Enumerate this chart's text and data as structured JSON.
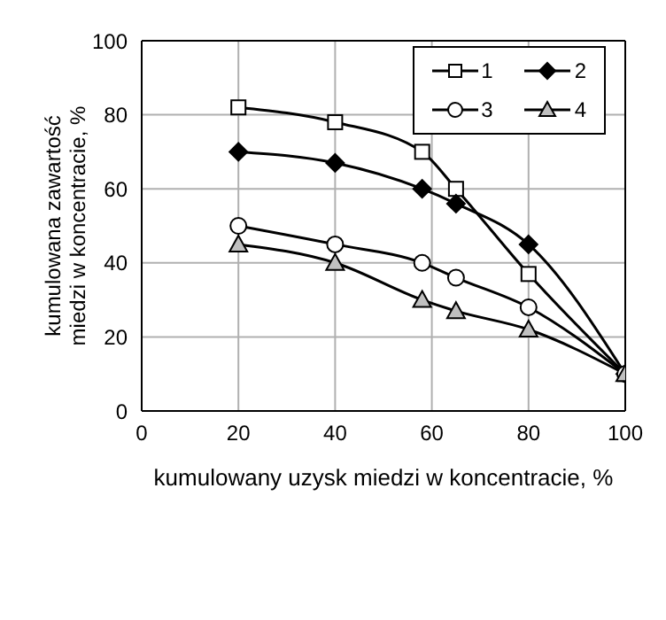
{
  "chart_data": {
    "type": "line",
    "xlabel": "kumulowany uzysk miedzi w koncentracie, %",
    "ylabel": "kumulowana zawartość miedzi w koncentracie, %",
    "x": [
      20,
      40,
      58,
      65,
      80,
      100
    ],
    "series": [
      {
        "name": "1",
        "color": "#000000",
        "marker": "square",
        "values": [
          82,
          78,
          70,
          60,
          37,
          10
        ]
      },
      {
        "name": "2",
        "color": "#000000",
        "marker": "diamond",
        "values": [
          70,
          67,
          60,
          56,
          45,
          10
        ]
      },
      {
        "name": "3",
        "color": "#000000",
        "marker": "circle",
        "values": [
          50,
          45,
          40,
          36,
          28,
          10
        ]
      },
      {
        "name": "4",
        "color": "#000000",
        "marker": "triangle",
        "values": [
          45,
          40,
          30,
          27,
          22,
          10
        ]
      }
    ],
    "xlim": [
      0,
      100
    ],
    "xticks": [
      0,
      20,
      40,
      60,
      80,
      100
    ],
    "ylim": [
      0,
      100
    ],
    "yticks": [
      0,
      20,
      40,
      60,
      80,
      100
    ],
    "grid": true,
    "legend": "top right",
    "line_style": "solid"
  }
}
